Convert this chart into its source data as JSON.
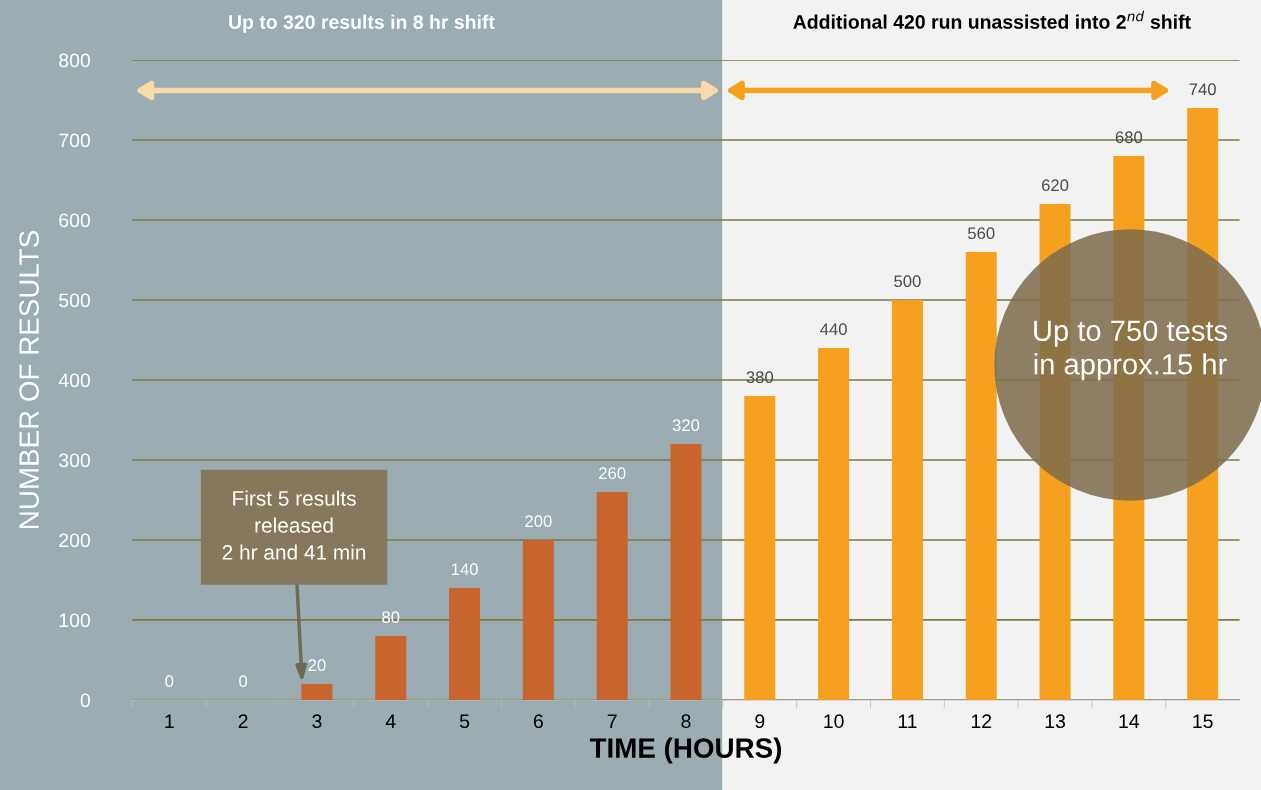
{
  "chart_data": {
    "type": "bar",
    "xlabel": "TIME (HOURS)",
    "ylabel": "NUMBER OF RESULTS",
    "categories": [
      "1",
      "2",
      "3",
      "4",
      "5",
      "6",
      "7",
      "8",
      "9",
      "10",
      "11",
      "12",
      "13",
      "14",
      "15"
    ],
    "values": [
      0,
      0,
      20,
      80,
      140,
      200,
      260,
      320,
      380,
      440,
      500,
      560,
      620,
      680,
      740
    ],
    "colors": [
      "#c8652f",
      "#c8652f",
      "#c8652f",
      "#c8652f",
      "#c8652f",
      "#c8652f",
      "#c8652f",
      "#c8652f",
      "#f5a11f",
      "#f5a11f",
      "#f5a11f",
      "#f5a11f",
      "#f5a11f",
      "#f5a11f",
      "#f5a11f"
    ],
    "ylim": [
      0,
      800
    ],
    "yticks": [
      0,
      100,
      200,
      300,
      400,
      500,
      600,
      700,
      800
    ],
    "grid": "y",
    "data_labels": true,
    "bands": [
      {
        "axis": "x",
        "from": "1",
        "to": "8",
        "label": "Up to 320 results in 8 hr shift",
        "color": "#9badb2"
      },
      {
        "axis": "x",
        "from": "9",
        "to": "15",
        "label": "Additional 420 run unassisted into 2$^{nd}$ shift",
        "color": "#f2f2f2"
      }
    ],
    "annotations": [
      "First 5 results\nreleased\n2 hr and 41 min",
      "Up to 750 tests\nin approx.15 hr"
    ]
  }
}
